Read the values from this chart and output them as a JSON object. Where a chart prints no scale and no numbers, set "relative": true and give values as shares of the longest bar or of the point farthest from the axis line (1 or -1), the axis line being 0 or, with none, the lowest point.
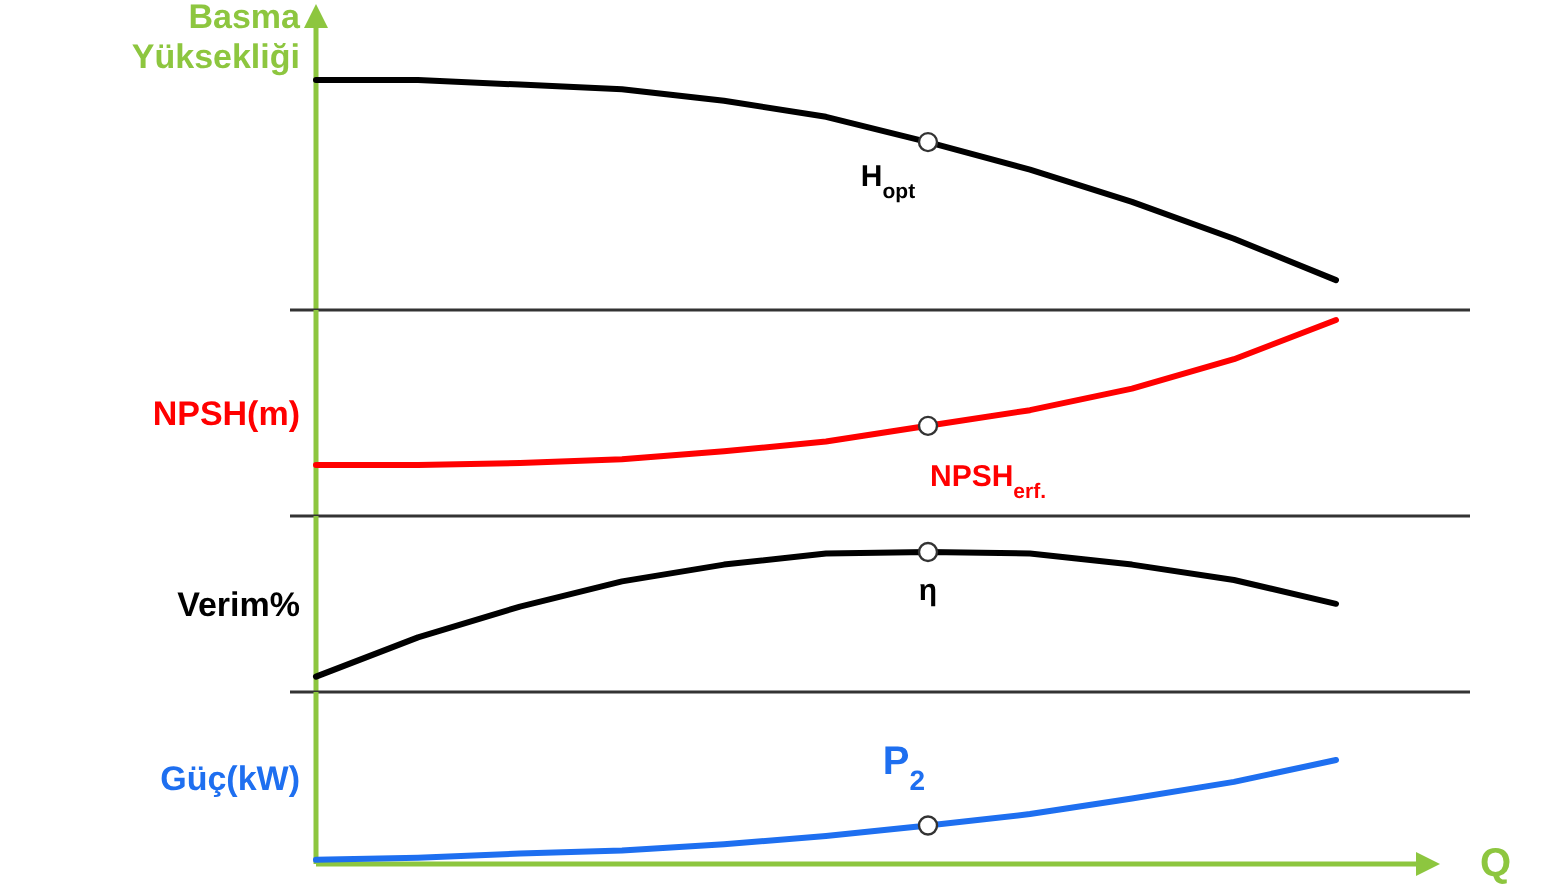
{
  "chart_data": [
    {
      "type": "line",
      "relative": true,
      "ylabel": "Basma Yüksekliği",
      "categories": [
        null,
        null,
        null,
        null,
        null,
        null,
        null,
        null,
        null,
        null,
        null
      ],
      "annotations": [
        {
          "text": "H$_{opt}$",
          "y": 0.73
        }
      ],
      "series": [
        {
          "color": "#000000",
          "values": [
            1,
            1,
            0.98,
            0.96,
            0.91,
            0.84,
            0.73,
            0.61,
            0.47,
            0.31,
            0.13
          ]
        }
      ]
    },
    {
      "type": "line",
      "relative": true,
      "ylabel": "NPSH(m)",
      "categories": [
        null,
        null,
        null,
        null,
        null,
        null,
        null,
        null,
        null,
        null,
        null
      ],
      "annotations": [
        {
          "text": "NPSH$_{erf.}$",
          "y": 0.46
        }
      ],
      "series": [
        {
          "color": "#ff0000",
          "values": [
            0.26,
            0.26,
            0.27,
            0.29,
            0.33,
            0.38,
            0.46,
            0.54,
            0.65,
            0.8,
            1
          ]
        }
      ]
    },
    {
      "type": "line",
      "relative": true,
      "ylabel": "Verim%",
      "categories": [
        null,
        null,
        null,
        null,
        null,
        null,
        null,
        null,
        null,
        null,
        null
      ],
      "annotations": [
        {
          "text": "η",
          "y": 1
        }
      ],
      "series": [
        {
          "color": "#000000",
          "values": [
            0.11,
            0.39,
            0.61,
            0.79,
            0.91,
            0.99,
            1,
            0.99,
            0.91,
            0.8,
            0.63
          ]
        }
      ]
    },
    {
      "type": "line",
      "relative": true,
      "ylabel": "Güç(kW)",
      "xlabel": "Q",
      "categories": [
        null,
        null,
        null,
        null,
        null,
        null,
        null,
        null,
        null,
        null,
        null
      ],
      "annotations": [
        {
          "text": "P$_{2}$",
          "y": 0.37
        }
      ],
      "series": [
        {
          "color": "#1e6ff0",
          "values": [
            0.04,
            0.06,
            0.1,
            0.13,
            0.19,
            0.27,
            0.37,
            0.48,
            0.63,
            0.79,
            1
          ]
        }
      ]
    }
  ]
}
